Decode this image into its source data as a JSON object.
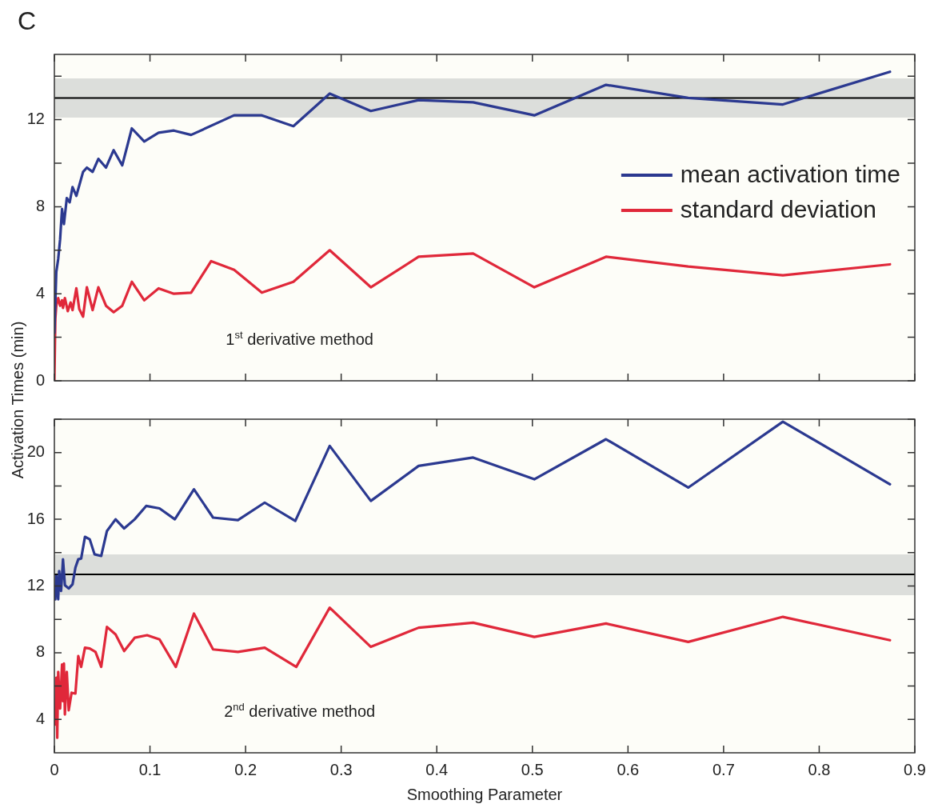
{
  "chart_data": [
    {
      "type": "line",
      "title": "C",
      "ylabel": "Activation Times (min)",
      "annotations": [
        "1$^{st}$ derivative method"
      ],
      "series": [
        {
          "name": "mean activation time",
          "color": "#2b3990",
          "x": [
            0,
            0.002,
            0.004,
            0.006,
            0.008,
            0.01,
            0.013,
            0.016,
            0.019,
            0.023,
            0.03,
            0.034,
            0.04,
            0.046,
            0.054,
            0.062,
            0.071,
            0.081,
            0.094,
            0.109,
            0.125,
            0.143,
            0.188,
            0.217,
            0.25,
            0.288,
            0.331,
            0.381,
            0.438,
            0.502,
            0.577,
            0.663,
            0.762,
            0.874
          ],
          "values": [
            2.2,
            5.0,
            5.6,
            6.5,
            7.9,
            7.2,
            8.4,
            8.2,
            8.9,
            8.5,
            9.6,
            9.8,
            9.6,
            10.2,
            9.8,
            10.6,
            9.9,
            11.6,
            11.0,
            11.4,
            11.5,
            11.3,
            12.2,
            12.2,
            11.7,
            13.2,
            12.4,
            12.9,
            12.8,
            12.2,
            13.6,
            13.0,
            12.7,
            14.2
          ]
        },
        {
          "name": "standard deviation",
          "color": "#e0283a",
          "x": [
            0,
            0.001,
            0.002,
            0.004,
            0.006,
            0.008,
            0.009,
            0.011,
            0.014,
            0.017,
            0.019,
            0.023,
            0.026,
            0.03,
            0.034,
            0.04,
            0.046,
            0.054,
            0.062,
            0.071,
            0.081,
            0.094,
            0.109,
            0.125,
            0.143,
            0.164,
            0.188,
            0.217,
            0.25,
            0.288,
            0.331,
            0.381,
            0.438,
            0.502,
            0.577,
            0.663,
            0.762,
            0.874
          ],
          "values": [
            0,
            2.85,
            3.45,
            3.8,
            3.45,
            3.7,
            3.35,
            3.8,
            3.2,
            3.6,
            3.25,
            4.25,
            3.3,
            2.95,
            4.3,
            3.25,
            4.3,
            3.45,
            3.15,
            3.45,
            4.55,
            3.7,
            4.25,
            4.0,
            4.05,
            5.5,
            5.1,
            4.05,
            4.55,
            6.0,
            4.3,
            5.7,
            5.85,
            4.3,
            5.7,
            5.25,
            4.85,
            5.35
          ]
        }
      ],
      "xlim": [
        0,
        0.9
      ],
      "xticks": [
        0,
        0.1,
        0.2,
        0.3,
        0.4,
        0.5,
        0.6,
        0.7,
        0.8,
        0.9
      ],
      "ylim": [
        0,
        15
      ],
      "yticks": [
        0,
        {
          "value": 2,
          "label": null
        },
        4,
        {
          "value": 6,
          "label": null
        },
        8,
        {
          "value": 10,
          "label": null
        },
        12,
        {
          "value": 14,
          "label": null
        }
      ],
      "ref_lines": [
        {
          "axis": "y",
          "value": 13,
          "color": "#000000"
        }
      ],
      "bands": [
        {
          "axis": "y",
          "from": 12.1,
          "to": 13.9,
          "color": "#dcdedb"
        }
      ],
      "tick_labels": "y",
      "legend": "right",
      "grid": false,
      "marker": "none",
      "line_style": "solid"
    },
    {
      "type": "line",
      "xlabel": "Smoothing Parameter",
      "annotations": [
        "2$^{nd}$ derivative method"
      ],
      "series": [
        {
          "color": "#2b3990",
          "x": [
            0.001,
            0.002,
            0.004,
            0.005,
            0.007,
            0.008,
            0.009,
            0.011,
            0.015,
            0.019,
            0.022,
            0.025,
            0.028,
            0.032,
            0.037,
            0.042,
            0.049,
            0.055,
            0.064,
            0.073,
            0.084,
            0.096,
            0.11,
            0.126,
            0.146,
            0.166,
            0.192,
            0.22,
            0.252,
            0.288,
            0.331,
            0.381,
            0.438,
            0.502,
            0.577,
            0.663,
            0.762,
            0.874
          ],
          "values": [
            11.2,
            12.6,
            11.2,
            12.9,
            11.7,
            12.6,
            13.6,
            12.05,
            11.85,
            12.1,
            13.1,
            13.6,
            13.65,
            14.95,
            14.8,
            13.9,
            13.8,
            15.3,
            16.0,
            15.45,
            16.0,
            16.8,
            16.65,
            16.0,
            17.8,
            16.1,
            15.95,
            17.0,
            15.9,
            20.4,
            17.1,
            19.2,
            19.7,
            18.4,
            20.8,
            17.9,
            21.85,
            18.1
          ]
        },
        {
          "color": "#e0283a",
          "x": [
            0.001,
            0.002,
            0.003,
            0.004,
            0.006,
            0.008,
            0.009,
            0.01,
            0.011,
            0.013,
            0.015,
            0.018,
            0.022,
            0.025,
            0.028,
            0.032,
            0.037,
            0.043,
            0.049,
            0.055,
            0.064,
            0.073,
            0.084,
            0.097,
            0.11,
            0.127,
            0.146,
            0.166,
            0.192,
            0.22,
            0.253,
            0.288,
            0.331,
            0.381,
            0.438,
            0.502,
            0.577,
            0.663,
            0.762,
            0.874
          ],
          "values": [
            3.7,
            6.5,
            2.9,
            6.85,
            4.65,
            7.3,
            5.1,
            7.35,
            4.3,
            6.85,
            4.55,
            5.6,
            5.55,
            7.8,
            7.15,
            8.3,
            8.25,
            8.05,
            7.15,
            9.55,
            9.1,
            8.1,
            8.9,
            9.05,
            8.8,
            7.15,
            10.35,
            8.2,
            8.05,
            8.3,
            7.15,
            10.7,
            8.35,
            9.5,
            9.8,
            8.95,
            9.75,
            8.65,
            10.15,
            8.75
          ]
        }
      ],
      "xlim": [
        0,
        0.9
      ],
      "xticks": [
        0,
        0.1,
        0.2,
        0.3,
        0.4,
        0.5,
        0.6,
        0.7,
        0.8,
        0.9
      ],
      "ylim": [
        2,
        22
      ],
      "yticks": [
        4,
        {
          "value": 6,
          "label": null
        },
        8,
        {
          "value": 10,
          "label": null
        },
        12,
        {
          "value": 14,
          "label": null
        },
        16,
        {
          "value": 18,
          "label": null
        },
        20,
        {
          "value": 22,
          "label": null
        }
      ],
      "ref_lines": [
        {
          "axis": "y",
          "value": 12.7,
          "color": "#000000"
        }
      ],
      "bands": [
        {
          "axis": "y",
          "from": 11.45,
          "to": 13.9,
          "color": "#dcdedb"
        }
      ],
      "grid": false,
      "marker": "none",
      "line_style": "solid"
    }
  ]
}
